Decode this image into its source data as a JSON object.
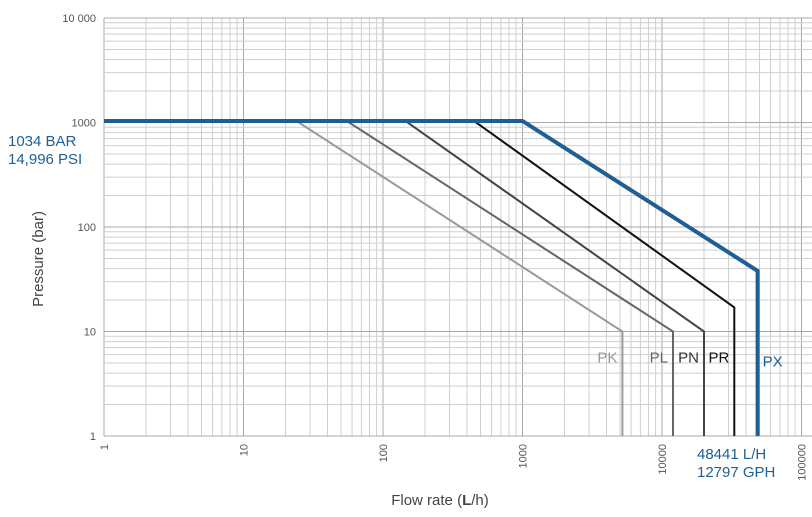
{
  "chart_data": {
    "type": "line",
    "xlabel_parts": [
      "Flow rate (",
      "L",
      "/h)"
    ],
    "ylabel": "Pressure (bar)",
    "x_scale": "log",
    "y_scale": "log",
    "xlim": [
      1,
      100000
    ],
    "ylim": [
      1,
      10000
    ],
    "grid": true,
    "x_ticks": [
      {
        "value": 1,
        "label": "1"
      },
      {
        "value": 10,
        "label": "10"
      },
      {
        "value": 100,
        "label": "100"
      },
      {
        "value": 1000,
        "label": "1000"
      },
      {
        "value": 10000,
        "label": "10000"
      },
      {
        "value": 100000,
        "label": "100000"
      }
    ],
    "y_ticks": [
      {
        "value": 1,
        "label": "1"
      },
      {
        "value": 10,
        "label": "10"
      },
      {
        "value": 100,
        "label": "100"
      },
      {
        "value": 1000,
        "label": "1000"
      },
      {
        "value": 10000,
        "label": "10 000"
      }
    ],
    "series": [
      {
        "name": "PK",
        "color": "#999999",
        "width": 2,
        "label_color": "#999999",
        "points": [
          [
            1,
            1034
          ],
          [
            24,
            1034
          ],
          [
            5200,
            10
          ],
          [
            5200,
            1
          ]
        ]
      },
      {
        "name": "PL",
        "color": "#666666",
        "width": 2,
        "label_color": "#666666",
        "points": [
          [
            1,
            1034
          ],
          [
            55,
            1034
          ],
          [
            12000,
            10
          ],
          [
            12000,
            1
          ]
        ]
      },
      {
        "name": "PN",
        "color": "#444444",
        "width": 2,
        "label_color": "#333333",
        "points": [
          [
            1,
            1034
          ],
          [
            145,
            1034
          ],
          [
            20000,
            10
          ],
          [
            20000,
            1
          ]
        ]
      },
      {
        "name": "PR",
        "color": "#111111",
        "width": 2,
        "label_color": "#111111",
        "points": [
          [
            1,
            1034
          ],
          [
            450,
            1034
          ],
          [
            33000,
            17
          ],
          [
            33000,
            1
          ]
        ]
      },
      {
        "name": "PX",
        "color": "#1f5f93",
        "width": 4,
        "label_color": "#1f5f93",
        "points": [
          [
            1,
            1034
          ],
          [
            1000,
            1034
          ],
          [
            48441,
            38
          ],
          [
            48441,
            1
          ]
        ]
      }
    ],
    "annotations": {
      "max_pressure": [
        "1034 BAR",
        "14,996 PSI"
      ],
      "max_flow": [
        "48441 L/H",
        "12797 GPH"
      ]
    }
  }
}
